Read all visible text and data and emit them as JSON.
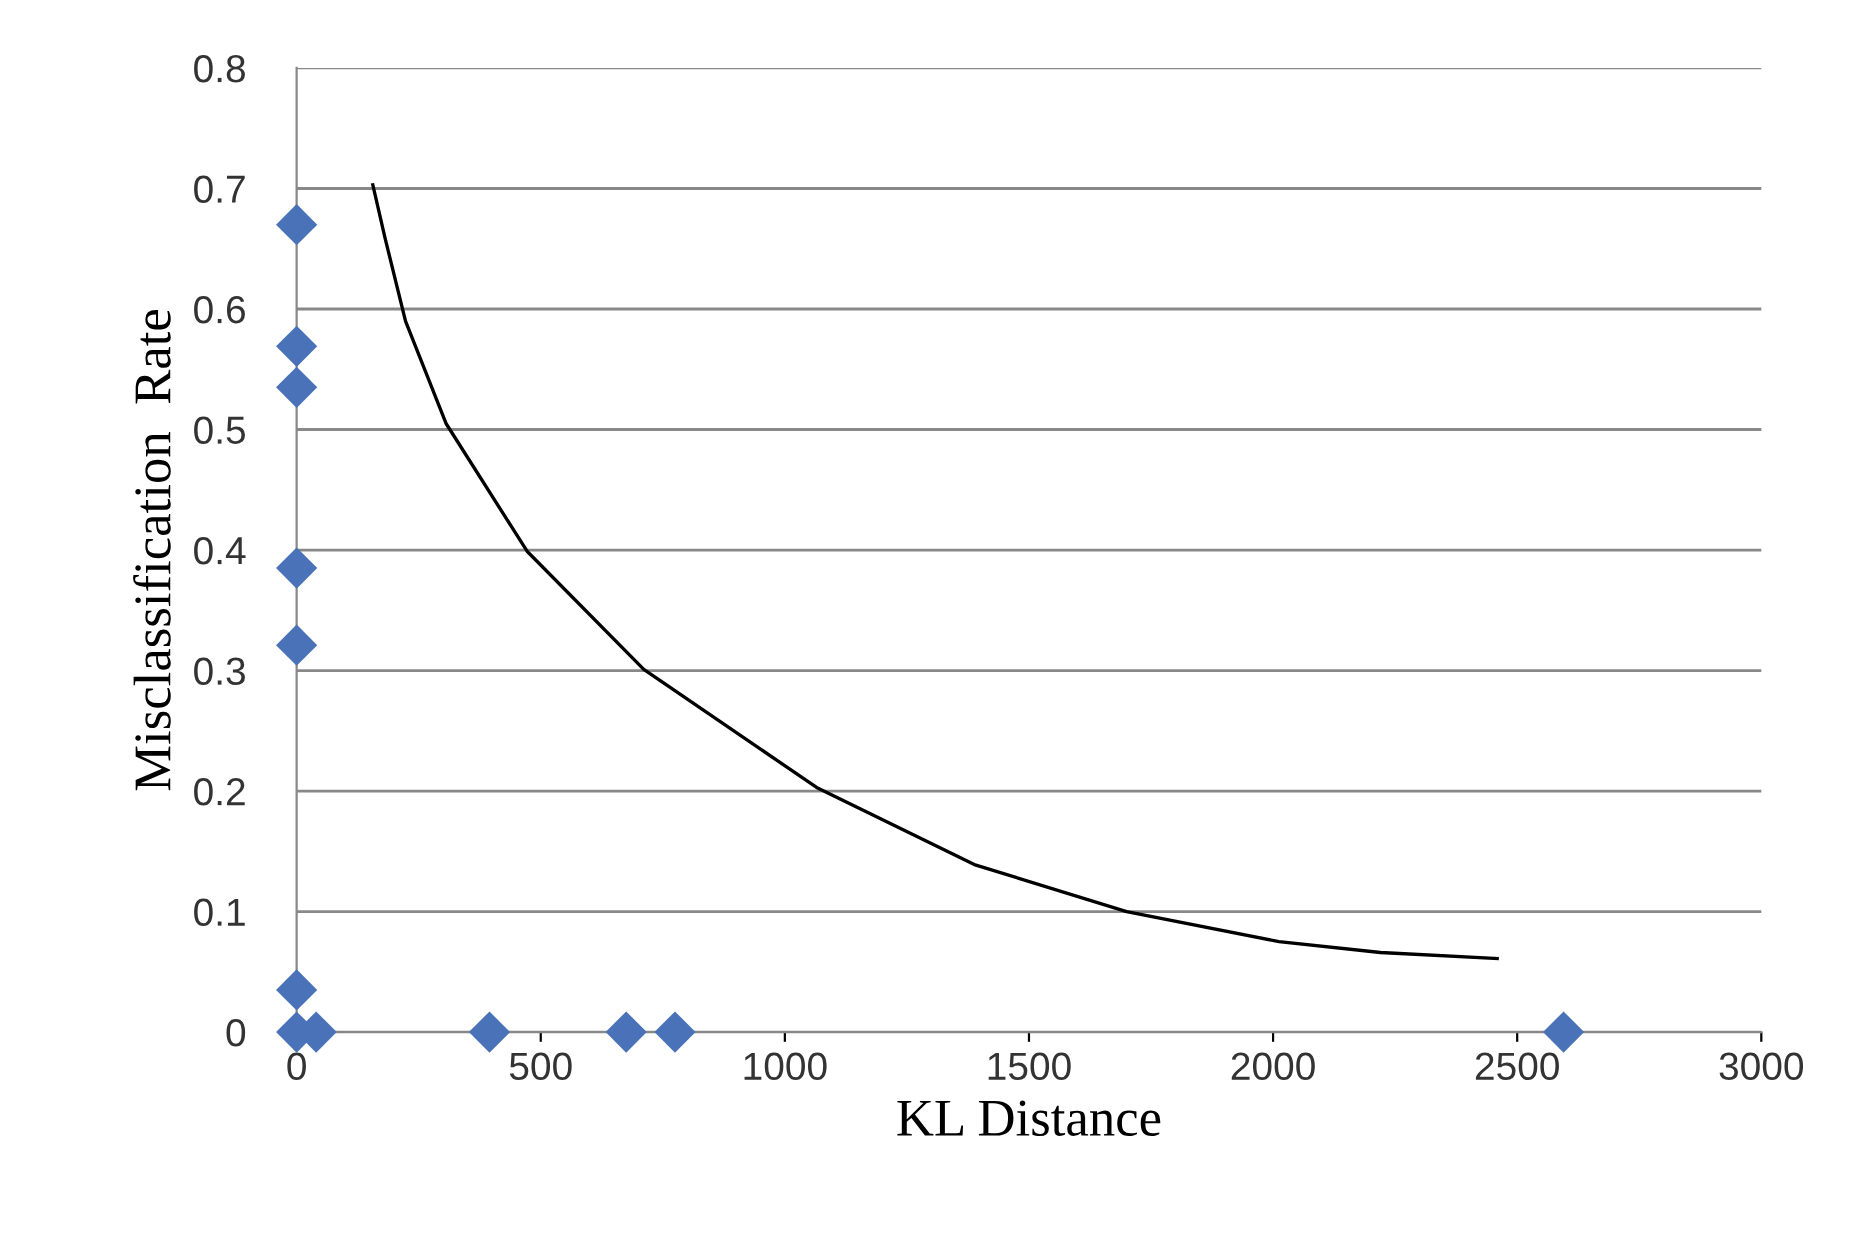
{
  "chart_data": {
    "type": "scatter",
    "xlabel": "KL Distance",
    "ylabel": "Misclassification  Rate",
    "xlim": [
      0,
      3000
    ],
    "xticks": [
      0,
      500,
      1000,
      1500,
      2000,
      2500,
      3000
    ],
    "ylim": [
      0,
      0.8
    ],
    "yticks": [
      0,
      0.1,
      0.2,
      0.3,
      0.4,
      0.5,
      0.6,
      0.7,
      0.8
    ],
    "grid": "y",
    "marker": "diamond",
    "series": [
      {
        "color": "#4a72b8",
        "x": [
          0,
          0,
          0,
          0,
          0,
          0,
          0,
          40,
          395,
          675,
          775,
          2595
        ],
        "values": [
          0.67,
          0.569,
          0.535,
          0.385,
          0.321,
          0.035,
          0,
          0,
          0,
          0,
          0,
          0
        ]
      },
      {
        "type": "line",
        "color": "#000000",
        "marker": "none",
        "x": [
          156,
          181,
          223,
          306,
          472,
          711,
          1065,
          1388,
          1700,
          2012,
          2220,
          2459
        ],
        "values": [
          0.703,
          0.659,
          0.59,
          0.505,
          0.399,
          0.301,
          0.203,
          0.139,
          0.1,
          0.075,
          0.066,
          0.061
        ]
      }
    ]
  }
}
